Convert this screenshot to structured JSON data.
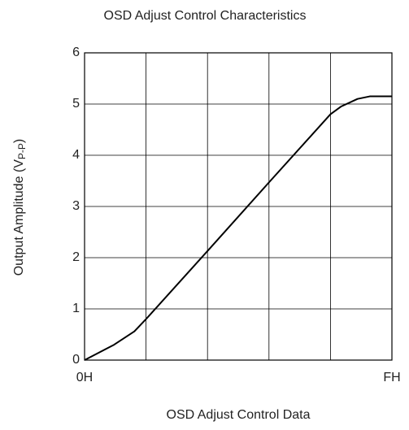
{
  "chart_data": {
    "type": "line",
    "title": "OSD Adjust Control Characteristics",
    "x_label": "OSD Adjust Control Data",
    "y_label": {
      "main": "Output Amplitude (V",
      "sub": "P-P",
      "end": ")"
    },
    "series": [
      {
        "name": "Output Amplitude",
        "color": "#000000",
        "x": [
          0,
          0.48,
          0.81,
          1,
          2,
          3,
          4,
          4.17,
          4.44,
          4.64,
          5
        ],
        "values": [
          0,
          0.3,
          0.56,
          0.8,
          2.13,
          3.47,
          4.8,
          4.95,
          5.1,
          5.15,
          5.15
        ]
      }
    ],
    "xlim": [
      0,
      5
    ],
    "xticks": [
      {
        "value": 0,
        "label": "0H"
      },
      {
        "value": 5,
        "label": "FH"
      }
    ],
    "xgrid": [
      1,
      2,
      3,
      4
    ],
    "ylim": [
      0,
      6
    ],
    "yticks": [
      0,
      1,
      2,
      3,
      4,
      5,
      6
    ],
    "grid": true
  }
}
